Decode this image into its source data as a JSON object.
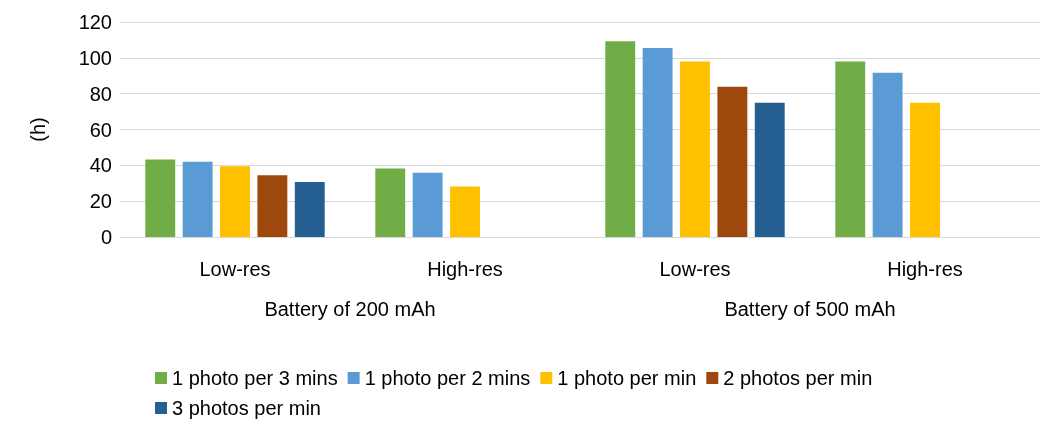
{
  "chart_data": {
    "type": "bar",
    "ylabel": "(h)",
    "categories": [
      "Low-res",
      "High-res",
      "Low-res",
      "High-res"
    ],
    "annotations": [
      "Battery of 200 mAh",
      "Battery of 500 mAh"
    ],
    "series": [
      {
        "name": "1 photo per 3 mins",
        "color": "#70ad47",
        "values": [
          43.3,
          38.2,
          109.2,
          97.9
        ]
      },
      {
        "name": "1 photo per 2 mins",
        "color": "#5b9bd5",
        "values": [
          42,
          35.8,
          105.5,
          91.7
        ]
      },
      {
        "name": "1 photo per min",
        "color": "#ffc000",
        "values": [
          39.5,
          28.2,
          97.9,
          75
        ]
      },
      {
        "name": "2 photos per min",
        "color": "#9e480e",
        "values": [
          34.5,
          null,
          83.9,
          null
        ]
      },
      {
        "name": "3 photos per min",
        "color": "#255e91",
        "values": [
          30.7,
          null,
          75,
          null
        ]
      }
    ],
    "ylim": [
      0,
      120
    ],
    "yticks": [
      0,
      20,
      40,
      60,
      80,
      100,
      120
    ],
    "grid": "y",
    "legend": "bottom"
  }
}
